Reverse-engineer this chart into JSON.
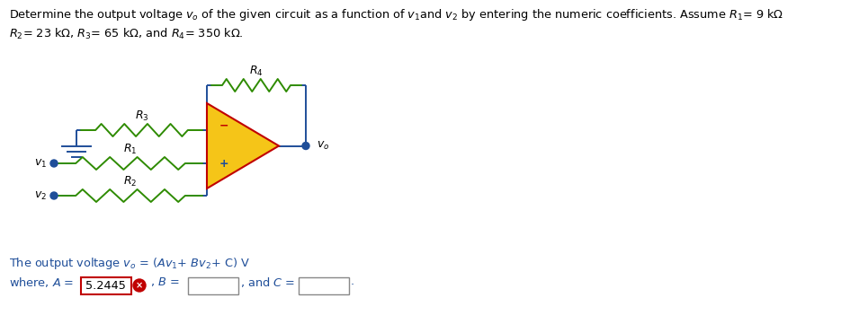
{
  "bg_color": "#ffffff",
  "wire_color": "#1f4e99",
  "resistor_color": "#2e8b00",
  "opamp_fill": "#f5c518",
  "opamp_border": "#c00000",
  "text_color": "#000000",
  "formula_color": "#1f4e99",
  "box_red_color": "#c00000",
  "box_gray_color": "#888888",
  "box_value": "5.2445",
  "neg_color": "#c00000",
  "pos_color": "#1f4e99",
  "vo_dot_color": "#1f4e99",
  "title1": "Determine the output voltage ",
  "title1b": " of the given circuit as a function of ",
  "title1c": "and ",
  "title1d": " by entering the numeric coefficients. Assume ",
  "title1e": "= 9 kΩ",
  "title2a": "= 23 kΩ, ",
  "title2b": "= 65 kΩ, and ",
  "title2c": "= 350 kΩ."
}
